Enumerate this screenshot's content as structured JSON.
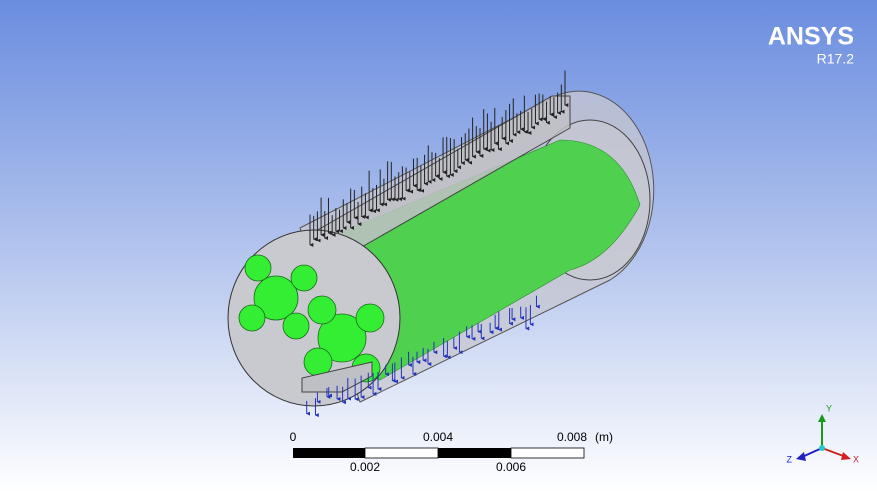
{
  "logo": {
    "name": "ANSYS",
    "version": "R17.2"
  },
  "scale_bar": {
    "top_labels": [
      "0",
      "0.004",
      "0.008"
    ],
    "unit": "(m)",
    "bottom_labels": [
      "0.002",
      "0.006"
    ]
  },
  "triad": {
    "y": "Y",
    "z": "Z",
    "x": "X"
  }
}
